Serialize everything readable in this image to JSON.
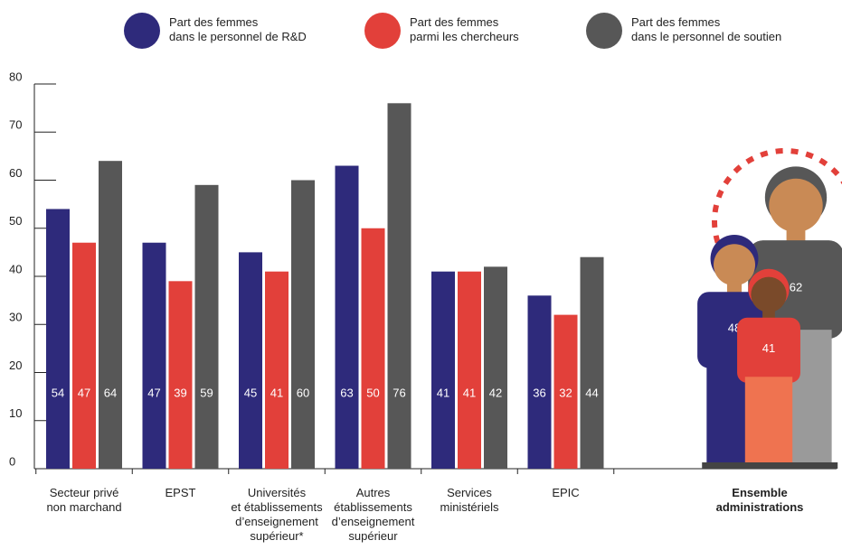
{
  "chart_data": {
    "type": "bar",
    "categories": [
      "Secteur privé\nnon marchand",
      "EPST",
      "Universités\net établissements\nd’enseignement\nsupérieur*",
      "Autres\nétablissements\nd’enseignement\nsupérieur",
      "Services\nministériels",
      "EPIC",
      "Ensemble\nadministrations"
    ],
    "series": [
      {
        "name": "Part des femmes\ndans le personnel de R&D",
        "color": "#2e2a7b",
        "values": [
          54,
          47,
          45,
          63,
          41,
          36,
          48
        ]
      },
      {
        "name": "Part des femmes\nparmi les chercheurs",
        "color": "#e2403a",
        "values": [
          47,
          39,
          41,
          50,
          41,
          32,
          41
        ]
      },
      {
        "name": "Part des femmes\ndans le personnel de soutien",
        "color": "#575757",
        "values": [
          64,
          59,
          60,
          76,
          42,
          44,
          62
        ]
      }
    ],
    "ylim": [
      0,
      80
    ],
    "yticks": [
      0,
      10,
      20,
      30,
      40,
      50,
      60,
      70,
      80
    ]
  }
}
